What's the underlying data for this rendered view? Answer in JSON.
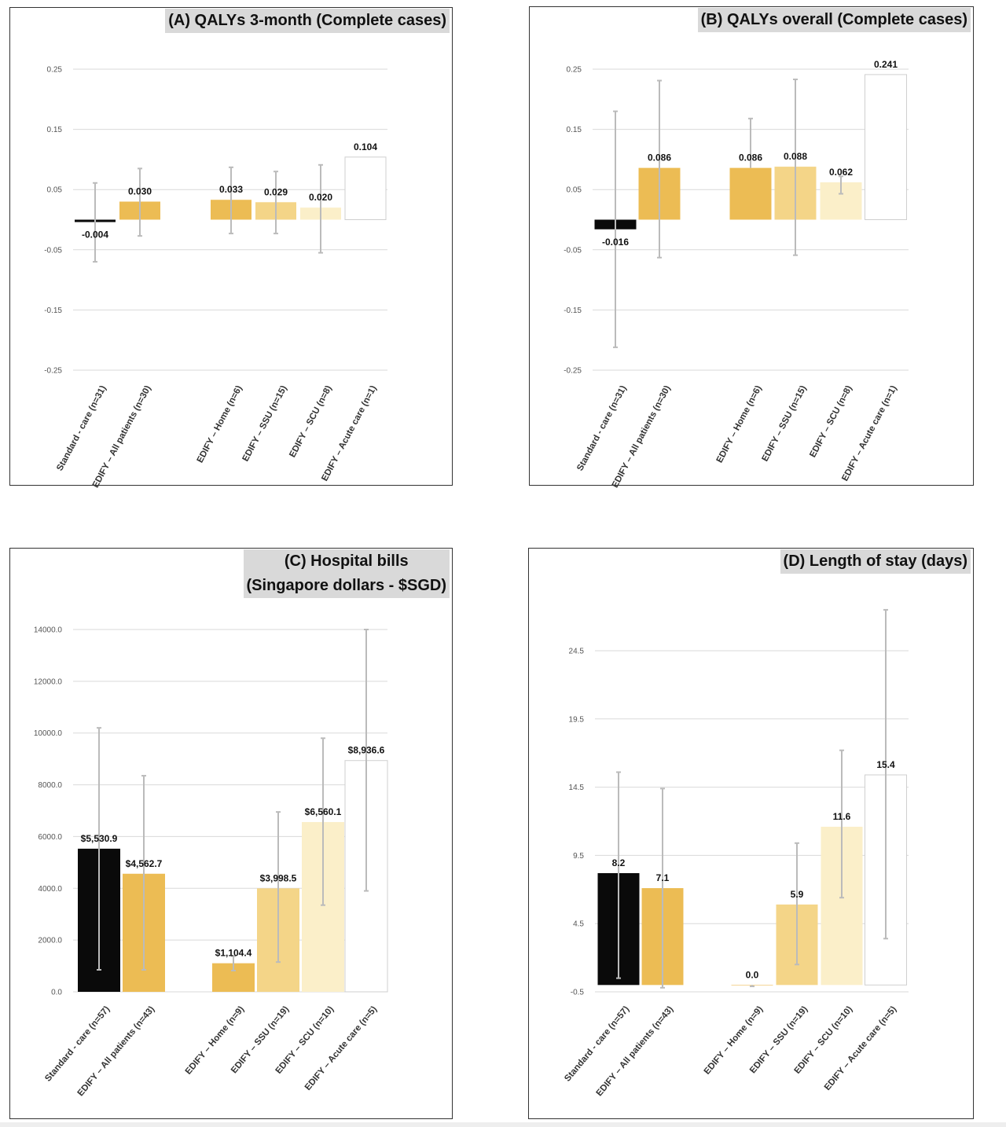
{
  "colors": {
    "standard_care": "#0a0a0a",
    "all_patients": "#ecbc54",
    "home": "#ecbc54",
    "ssu": "#f4d588",
    "scu": "#fbefc9",
    "acute_care": "#ffffff",
    "error_bar": "#bbbbbb",
    "gridline": "#d9d9d9",
    "title_bg": "#d9d9d9"
  },
  "chart_data": [
    {
      "id": "A",
      "type": "bar",
      "title_lines": [
        "(A) QALYs  3-month (Complete cases)"
      ],
      "ylim": [
        -0.25,
        0.25
      ],
      "yticks": [
        -0.25,
        -0.15,
        -0.05,
        0.05,
        0.15,
        0.25
      ],
      "ytick_labels": [
        "-0.25",
        "-0.15",
        "-0.05",
        "0.05",
        "0.15",
        "0.25"
      ],
      "grid": true,
      "categories": [
        "Standard - care (n=31)",
        "EDIFY – All patients (n=30)",
        "EDIFY – Home (n=6)",
        "EDIFY – SSU (n=15)",
        "EDIFY – SCU (n=8)",
        "EDIFY – Acute care (n=1)"
      ],
      "values": [
        -0.004,
        0.03,
        0.033,
        0.029,
        0.02,
        0.104
      ],
      "value_labels": [
        "-0.004",
        "0.030",
        "0.033",
        "0.029",
        "0.020",
        "0.104"
      ],
      "error_low": [
        -0.07,
        -0.027,
        -0.023,
        -0.023,
        -0.055,
        null
      ],
      "error_high": [
        0.061,
        0.085,
        0.087,
        0.08,
        0.091,
        null
      ]
    },
    {
      "id": "B",
      "type": "bar",
      "title_lines": [
        "(B) QALYs  overall (Complete cases)"
      ],
      "ylim": [
        -0.25,
        0.25
      ],
      "yticks": [
        -0.25,
        -0.15,
        -0.05,
        0.05,
        0.15,
        0.25
      ],
      "ytick_labels": [
        "-0.25",
        "-0.15",
        "-0.05",
        "0.05",
        "0.15",
        "0.25"
      ],
      "grid": true,
      "categories": [
        "Standard - care (n=31)",
        "EDIFY – All patients (n=30)",
        "EDIFY – Home (n=6)",
        "EDIFY – SSU (n=15)",
        "EDIFY – SCU (n=8)",
        "EDIFY – Acute care (n=1)"
      ],
      "values": [
        -0.016,
        0.086,
        0.086,
        0.088,
        0.062,
        0.241
      ],
      "value_labels": [
        "-0.016",
        "0.086",
        "0.086",
        "0.088",
        "0.062",
        "0.241"
      ],
      "error_low": [
        -0.212,
        -0.063,
        null,
        -0.059,
        0.043,
        null
      ],
      "error_high": [
        0.18,
        0.231,
        0.168,
        0.233,
        0.072,
        null
      ]
    },
    {
      "id": "C",
      "type": "bar",
      "title_lines": [
        "(C) Hospital bills",
        "(Singapore dollars - $SGD)"
      ],
      "ylim": [
        0,
        14000
      ],
      "yticks": [
        0,
        2000,
        4000,
        6000,
        8000,
        10000,
        12000,
        14000
      ],
      "ytick_labels": [
        "0.0",
        "2000.0",
        "4000.0",
        "6000.0",
        "8000.0",
        "10000.0",
        "12000.0",
        "14000.0"
      ],
      "grid": true,
      "categories": [
        "Standard - care (n=57)",
        "EDIFY – All patients (n=43)",
        "EDIFY – Home (n=9)",
        "EDIFY – SSU (n=19)",
        "EDIFY – SCU (n=10)",
        "EDIFY – Acute care (n=5)"
      ],
      "values": [
        5530.9,
        4562.7,
        1104.4,
        3998.5,
        6560.1,
        8936.6
      ],
      "value_labels": [
        "$5,530.9",
        "$4,562.7",
        "$1,104.4",
        "$3,998.5",
        "$6,560.1",
        "$8,936.6"
      ],
      "error_low": [
        850,
        850,
        820,
        1150,
        3350,
        3900
      ],
      "error_high": [
        10200,
        8350,
        1380,
        6950,
        9800,
        14000
      ]
    },
    {
      "id": "D",
      "type": "bar",
      "title_lines": [
        "(D) Length of stay (days)"
      ],
      "ylim": [
        -0.5,
        24.5
      ],
      "yticks": [
        -0.5,
        4.5,
        9.5,
        14.5,
        19.5,
        24.5
      ],
      "ytick_labels": [
        "-0.5",
        "4.5",
        "9.5",
        "14.5",
        "19.5",
        "24.5"
      ],
      "grid": true,
      "categories": [
        "Standard - care (n=57)",
        "EDIFY – All patients (n=43)",
        "EDIFY – Home (n=9)",
        "EDIFY – SSU (n=19)",
        "EDIFY – SCU (n=10)",
        "EDIFY – Acute care (n=5)"
      ],
      "values": [
        8.2,
        7.1,
        0.0,
        5.9,
        11.6,
        15.4
      ],
      "value_labels": [
        "8.2",
        "7.1",
        "0.0",
        "5.9",
        "11.6",
        "15.4"
      ],
      "error_low": [
        0.5,
        -0.2,
        -0.1,
        1.5,
        6.4,
        3.4
      ],
      "error_high": [
        15.6,
        14.4,
        null,
        10.4,
        17.2,
        27.5
      ]
    }
  ]
}
